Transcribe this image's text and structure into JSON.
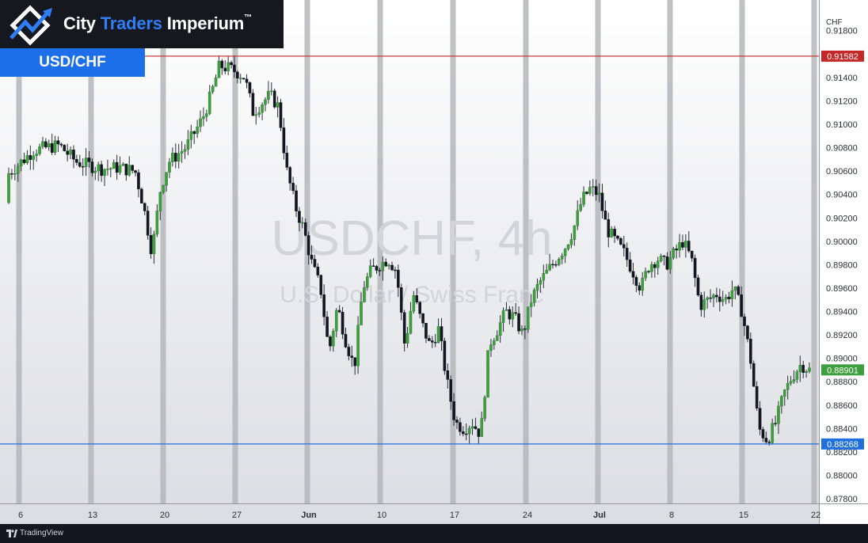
{
  "brand": {
    "name_part1": "City ",
    "name_part2": "Traders",
    "name_part3": " Imperium",
    "tm": "™"
  },
  "pair_badge": "USD/CHF",
  "watermark": {
    "line1": "USDCHF, 4h",
    "line2": "U.S. Dollar / Swiss Franc"
  },
  "price_axis": {
    "currency": "CHF",
    "tick_labels": [
      "0.91800",
      "0.91600",
      "0.91400",
      "0.91200",
      "0.91000",
      "0.90800",
      "0.90600",
      "0.90400",
      "0.90200",
      "0.90000",
      "0.89800",
      "0.89600",
      "0.89400",
      "0.89200",
      "0.89000",
      "0.88800",
      "0.88600",
      "0.88400",
      "0.88200",
      "0.88000",
      "0.87800"
    ]
  },
  "time_axis": {
    "tick_labels": [
      "6",
      "13",
      "20",
      "27",
      "Jun",
      "10",
      "17",
      "24",
      "Jul",
      "8",
      "15",
      "22"
    ]
  },
  "footer": {
    "text": "TradingView"
  },
  "colors": {
    "bull": "#3f9f3f",
    "bear": "#131722",
    "wick": "#2a2e39",
    "resistance": "#c62828",
    "support": "#1e6fe0",
    "weekend_band": "#b4b6bb"
  },
  "chart_data": {
    "type": "candlestick",
    "title": "USDCHF, 4h",
    "subtitle": "U.S. Dollar / Swiss Franc",
    "symbol": "USD/CHF",
    "timeframe": "4h",
    "ylabel": "CHF",
    "ylim": [
      0.8776,
      0.9194
    ],
    "x_tick_labels": [
      "6",
      "13",
      "20",
      "27",
      "Jun",
      "10",
      "17",
      "24",
      "Jul",
      "8",
      "15",
      "22"
    ],
    "horizontal_lines": [
      {
        "price": 0.91582,
        "label": "0.91582",
        "role": "resistance"
      },
      {
        "price": 0.88268,
        "label": "0.88268",
        "role": "support"
      }
    ],
    "last_price": {
      "price": 0.88901,
      "label": "0.88901"
    },
    "close_path": [
      [
        0,
        0.9058
      ],
      [
        3,
        0.9078
      ],
      [
        6,
        0.9082
      ],
      [
        8,
        0.9068
      ],
      [
        11,
        0.9062
      ],
      [
        13,
        0.9063
      ],
      [
        15,
        0.906
      ],
      [
        16,
        0.903
      ],
      [
        17,
        0.899
      ],
      [
        18,
        0.9045
      ],
      [
        19,
        0.9068
      ],
      [
        21,
        0.908
      ],
      [
        23,
        0.9105
      ],
      [
        24,
        0.9125
      ],
      [
        25,
        0.915
      ],
      [
        26,
        0.9148
      ],
      [
        27,
        0.9145
      ],
      [
        28,
        0.914
      ],
      [
        29,
        0.911
      ],
      [
        30,
        0.9118
      ],
      [
        31,
        0.9125
      ],
      [
        32,
        0.9115
      ],
      [
        33,
        0.906
      ],
      [
        34,
        0.903
      ],
      [
        35,
        0.901
      ],
      [
        36,
        0.898
      ],
      [
        37,
        0.896
      ],
      [
        38,
        0.8905
      ],
      [
        39,
        0.8945
      ],
      [
        40,
        0.8915
      ],
      [
        41,
        0.8892
      ],
      [
        42,
        0.896
      ],
      [
        43,
        0.8975
      ],
      [
        44,
        0.898
      ],
      [
        45,
        0.8985
      ],
      [
        46,
        0.8975
      ],
      [
        47,
        0.891
      ],
      [
        48,
        0.8955
      ],
      [
        49,
        0.893
      ],
      [
        50,
        0.891
      ],
      [
        51,
        0.8925
      ],
      [
        52,
        0.888
      ],
      [
        53,
        0.8845
      ],
      [
        54,
        0.884
      ],
      [
        55,
        0.8845
      ],
      [
        56,
        0.8835
      ],
      [
        57,
        0.8912
      ],
      [
        58,
        0.8925
      ],
      [
        59,
        0.894
      ],
      [
        60,
        0.8935
      ],
      [
        61,
        0.892
      ],
      [
        62,
        0.895
      ],
      [
        63,
        0.8965
      ],
      [
        64,
        0.8975
      ],
      [
        65,
        0.8985
      ],
      [
        66,
        0.8995
      ],
      [
        67,
        0.901
      ],
      [
        68,
        0.9035
      ],
      [
        69,
        0.9045
      ],
      [
        70,
        0.904
      ],
      [
        71,
        0.901
      ],
      [
        72,
        0.9
      ],
      [
        73,
        0.899
      ],
      [
        74,
        0.8975
      ],
      [
        75,
        0.896
      ],
      [
        76,
        0.898
      ],
      [
        77,
        0.8985
      ],
      [
        78,
        0.898
      ],
      [
        79,
        0.899
      ],
      [
        80,
        0.9
      ],
      [
        81,
        0.8985
      ],
      [
        82,
        0.8945
      ],
      [
        83,
        0.895
      ],
      [
        84,
        0.8955
      ],
      [
        85,
        0.895
      ],
      [
        86,
        0.896
      ],
      [
        87,
        0.894
      ],
      [
        88,
        0.89
      ],
      [
        89,
        0.884
      ],
      [
        90,
        0.883
      ],
      [
        91,
        0.8845
      ],
      [
        92,
        0.887
      ],
      [
        93,
        0.8885
      ],
      [
        94,
        0.8895
      ],
      [
        95,
        0.889
      ]
    ]
  }
}
